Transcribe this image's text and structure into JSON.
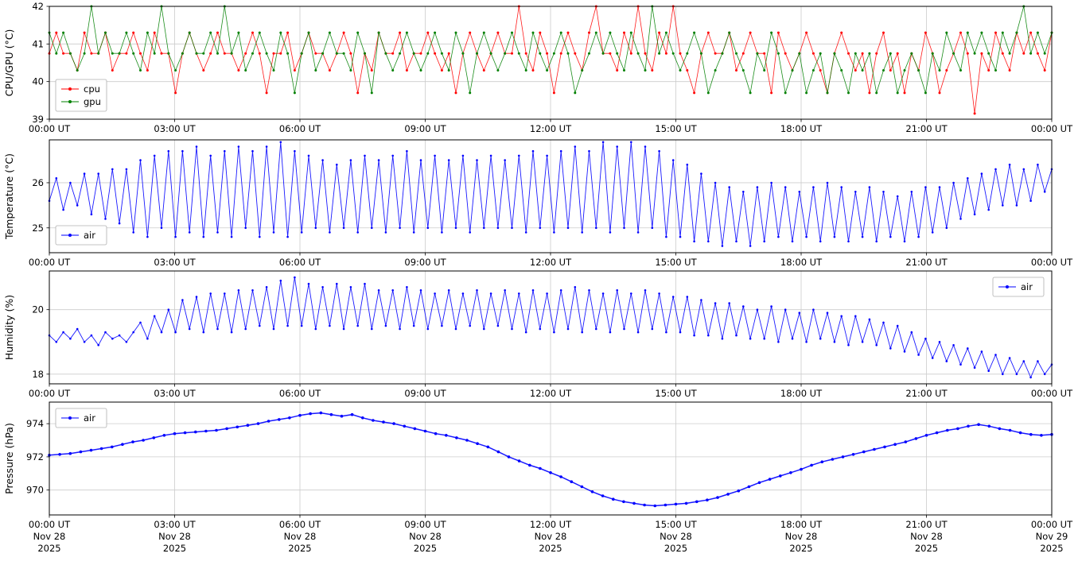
{
  "figure": {
    "background": "#ffffff",
    "grid_color": "#cccccc",
    "axis_color": "#000000"
  },
  "chart_data": {
    "type": "line",
    "title": "",
    "x_axis": {
      "unit": "hours",
      "range_hours": [
        0,
        24
      ],
      "tick_hours": [
        0,
        3,
        6,
        9,
        12,
        15,
        18,
        21,
        24
      ],
      "tick_labels": [
        "00:00 UT",
        "03:00 UT",
        "06:00 UT",
        "09:00 UT",
        "12:00 UT",
        "15:00 UT",
        "18:00 UT",
        "21:00 UT",
        "00:00 UT"
      ],
      "date_labels": [
        "Nov 28",
        "Nov 28",
        "Nov 28",
        "Nov 28",
        "Nov 28",
        "Nov 28",
        "Nov 28",
        "Nov 28",
        "Nov 29"
      ],
      "year_labels": [
        "2025",
        "2025",
        "2025",
        "2025",
        "2025",
        "2025",
        "2025",
        "2025",
        "2025"
      ]
    },
    "panels": [
      {
        "id": "cpu-gpu",
        "ylabel": "CPU/GPU (°C)",
        "ylim": [
          39,
          42
        ],
        "yticks": [
          39,
          40,
          41,
          42
        ],
        "grid": true,
        "legend_position": "lower-left",
        "series": [
          {
            "name": "cpu",
            "color": "#ff0000",
            "marker": "point",
            "values": [
              40.75,
              41.3,
              40.75,
              40.75,
              40.3,
              41.3,
              40.75,
              40.75,
              41.3,
              40.3,
              40.75,
              40.75,
              41.3,
              40.75,
              40.3,
              41.3,
              40.75,
              40.75,
              39.7,
              40.75,
              41.3,
              40.75,
              40.3,
              40.75,
              41.3,
              40.75,
              40.75,
              40.3,
              40.75,
              41.3,
              40.75,
              39.7,
              40.75,
              40.75,
              41.3,
              40.3,
              40.75,
              41.3,
              40.75,
              40.75,
              40.3,
              40.75,
              41.3,
              40.75,
              39.7,
              40.75,
              40.3,
              41.3,
              40.75,
              40.75,
              41.3,
              40.3,
              40.75,
              40.75,
              41.3,
              40.75,
              40.3,
              40.75,
              39.7,
              40.75,
              41.3,
              40.75,
              40.3,
              40.75,
              41.3,
              40.75,
              40.75,
              42.0,
              40.75,
              40.3,
              41.3,
              40.75,
              39.7,
              40.75,
              41.3,
              40.75,
              40.3,
              41.3,
              42.0,
              40.75,
              40.75,
              40.3,
              41.3,
              40.75,
              42.0,
              40.75,
              40.3,
              41.3,
              40.75,
              42.0,
              40.75,
              40.3,
              39.7,
              40.75,
              41.3,
              40.75,
              40.75,
              41.3,
              40.3,
              40.75,
              41.3,
              40.75,
              40.75,
              39.7,
              41.3,
              40.75,
              40.3,
              40.75,
              41.3,
              40.75,
              40.3,
              39.7,
              40.75,
              41.3,
              40.75,
              40.3,
              40.75,
              39.7,
              40.75,
              41.3,
              40.3,
              40.75,
              39.7,
              40.75,
              40.3,
              41.3,
              40.75,
              39.7,
              40.3,
              40.75,
              41.3,
              40.75,
              39.15,
              40.75,
              40.3,
              41.3,
              40.75,
              40.3,
              41.3,
              40.75,
              41.3,
              40.75,
              40.3,
              41.3
            ]
          },
          {
            "name": "gpu",
            "color": "#008000",
            "marker": "point",
            "values": [
              41.3,
              40.75,
              41.3,
              40.75,
              40.3,
              40.75,
              42.0,
              40.75,
              41.3,
              40.75,
              40.75,
              41.3,
              40.75,
              40.3,
              41.3,
              40.75,
              42.0,
              40.75,
              40.3,
              40.75,
              41.3,
              40.75,
              40.75,
              41.3,
              40.75,
              42.0,
              40.75,
              41.3,
              40.3,
              40.75,
              41.3,
              40.75,
              40.3,
              41.3,
              40.75,
              39.7,
              40.75,
              41.3,
              40.3,
              40.75,
              41.3,
              40.75,
              40.75,
              40.3,
              41.3,
              40.75,
              39.7,
              41.3,
              40.75,
              40.3,
              40.75,
              41.3,
              40.75,
              40.3,
              40.75,
              41.3,
              40.75,
              40.3,
              41.3,
              40.75,
              39.7,
              40.75,
              41.3,
              40.75,
              40.3,
              40.75,
              41.3,
              40.75,
              40.3,
              41.3,
              40.75,
              40.3,
              40.75,
              41.3,
              40.75,
              39.7,
              40.3,
              40.75,
              41.3,
              40.75,
              41.3,
              40.75,
              40.3,
              41.3,
              40.75,
              40.3,
              42.0,
              40.75,
              41.3,
              40.75,
              40.3,
              40.75,
              41.3,
              40.75,
              39.7,
              40.3,
              40.75,
              41.3,
              40.75,
              40.3,
              39.7,
              40.75,
              40.3,
              41.3,
              40.75,
              39.7,
              40.3,
              40.75,
              39.7,
              40.3,
              40.75,
              39.7,
              40.75,
              40.3,
              39.7,
              40.75,
              40.3,
              40.75,
              39.7,
              40.3,
              40.75,
              39.7,
              40.3,
              40.75,
              40.3,
              39.7,
              40.75,
              40.3,
              41.3,
              40.75,
              40.3,
              41.3,
              40.75,
              41.3,
              40.75,
              40.3,
              41.3,
              40.75,
              41.3,
              42.0,
              40.75,
              41.3,
              40.75,
              41.3
            ]
          }
        ]
      },
      {
        "id": "temperature",
        "ylabel": "Temperature (°C)",
        "ylim": [
          24.45,
          26.95
        ],
        "yticks": [
          25,
          26
        ],
        "grid": true,
        "legend_position": "lower-left",
        "series": [
          {
            "name": "air",
            "color": "#0000ff",
            "marker": "point",
            "values": [
              25.6,
              26.1,
              25.4,
              26.0,
              25.5,
              26.2,
              25.3,
              26.2,
              25.2,
              26.3,
              25.1,
              26.3,
              24.9,
              26.5,
              24.8,
              26.6,
              25.0,
              26.7,
              24.8,
              26.7,
              24.9,
              26.8,
              24.8,
              26.6,
              24.9,
              26.7,
              24.8,
              26.8,
              25.0,
              26.7,
              24.8,
              26.8,
              24.9,
              26.9,
              24.8,
              26.7,
              24.9,
              26.6,
              25.0,
              26.5,
              24.9,
              26.4,
              25.0,
              26.5,
              24.9,
              26.6,
              25.0,
              26.5,
              24.9,
              26.6,
              25.0,
              26.7,
              24.9,
              26.5,
              25.0,
              26.6,
              24.9,
              26.5,
              25.0,
              26.6,
              24.9,
              26.5,
              25.0,
              26.6,
              25.0,
              26.5,
              25.0,
              26.6,
              24.9,
              26.7,
              25.0,
              26.6,
              24.9,
              26.7,
              25.0,
              26.8,
              24.9,
              26.7,
              25.0,
              26.9,
              24.9,
              26.8,
              25.0,
              26.9,
              24.9,
              26.8,
              25.0,
              26.7,
              24.8,
              26.5,
              24.8,
              26.4,
              24.7,
              26.2,
              24.7,
              26.0,
              24.6,
              25.9,
              24.7,
              25.8,
              24.6,
              25.9,
              24.7,
              26.0,
              24.8,
              25.9,
              24.7,
              25.8,
              24.8,
              25.9,
              24.7,
              26.0,
              24.8,
              25.9,
              24.7,
              25.8,
              24.8,
              25.9,
              24.7,
              25.8,
              24.8,
              25.7,
              24.7,
              25.8,
              24.8,
              25.9,
              24.9,
              25.9,
              25.0,
              26.0,
              25.2,
              26.1,
              25.3,
              26.2,
              25.4,
              26.3,
              25.5,
              26.4,
              25.5,
              26.3,
              25.6,
              26.4,
              25.8,
              26.3
            ]
          }
        ]
      },
      {
        "id": "humidity",
        "ylabel": "Humidity (%)",
        "ylim": [
          17.7,
          21.2
        ],
        "yticks": [
          18,
          20
        ],
        "grid": true,
        "legend_position": "upper-right",
        "series": [
          {
            "name": "air",
            "color": "#0000ff",
            "marker": "point",
            "values": [
              19.2,
              19.0,
              19.3,
              19.1,
              19.4,
              19.0,
              19.2,
              18.9,
              19.3,
              19.1,
              19.2,
              19.0,
              19.3,
              19.6,
              19.1,
              19.8,
              19.3,
              20.0,
              19.3,
              20.3,
              19.4,
              20.4,
              19.3,
              20.5,
              19.4,
              20.5,
              19.3,
              20.6,
              19.4,
              20.6,
              19.5,
              20.7,
              19.4,
              20.9,
              19.5,
              21.0,
              19.5,
              20.8,
              19.4,
              20.7,
              19.5,
              20.8,
              19.4,
              20.7,
              19.5,
              20.8,
              19.4,
              20.6,
              19.5,
              20.6,
              19.4,
              20.7,
              19.5,
              20.6,
              19.4,
              20.5,
              19.5,
              20.6,
              19.4,
              20.5,
              19.5,
              20.6,
              19.4,
              20.5,
              19.5,
              20.6,
              19.4,
              20.5,
              19.3,
              20.6,
              19.4,
              20.5,
              19.3,
              20.6,
              19.4,
              20.7,
              19.3,
              20.6,
              19.4,
              20.5,
              19.3,
              20.6,
              19.4,
              20.5,
              19.3,
              20.6,
              19.4,
              20.5,
              19.3,
              20.4,
              19.3,
              20.4,
              19.2,
              20.3,
              19.2,
              20.2,
              19.1,
              20.2,
              19.2,
              20.1,
              19.1,
              20.0,
              19.1,
              20.1,
              19.0,
              20.0,
              19.1,
              19.9,
              19.0,
              20.0,
              19.1,
              19.9,
              19.0,
              19.8,
              18.9,
              19.8,
              19.0,
              19.7,
              18.9,
              19.6,
              18.8,
              19.5,
              18.7,
              19.3,
              18.6,
              19.1,
              18.5,
              19.0,
              18.4,
              18.9,
              18.3,
              18.8,
              18.2,
              18.7,
              18.1,
              18.6,
              18.0,
              18.5,
              18.0,
              18.4,
              17.9,
              18.4,
              18.0,
              18.3
            ]
          }
        ]
      },
      {
        "id": "pressure",
        "ylabel": "Pressure (hPa)",
        "ylim": [
          968.5,
          975.3
        ],
        "yticks": [
          970,
          972,
          974
        ],
        "grid": true,
        "legend_position": "upper-left",
        "series": [
          {
            "name": "air",
            "color": "#0000ff",
            "marker": "point",
            "values": [
              972.1,
              972.15,
              972.2,
              972.3,
              972.4,
              972.5,
              972.6,
              972.75,
              972.9,
              973.0,
              973.15,
              973.3,
              973.4,
              973.45,
              973.5,
              973.55,
              973.6,
              973.7,
              973.8,
              973.9,
              974.0,
              974.15,
              974.25,
              974.35,
              974.5,
              974.6,
              974.65,
              974.55,
              974.45,
              974.55,
              974.35,
              974.2,
              974.1,
              974.0,
              973.85,
              973.7,
              973.55,
              973.4,
              973.3,
              973.15,
              973.0,
              972.8,
              972.6,
              972.3,
              972.0,
              971.75,
              971.5,
              971.3,
              971.05,
              970.8,
              970.5,
              970.2,
              969.9,
              969.65,
              969.45,
              969.3,
              969.2,
              969.1,
              969.05,
              969.1,
              969.15,
              969.2,
              969.3,
              969.4,
              969.55,
              969.75,
              969.95,
              970.2,
              970.45,
              970.65,
              970.85,
              971.05,
              971.25,
              971.5,
              971.7,
              971.85,
              972.0,
              972.15,
              972.3,
              972.45,
              972.6,
              972.75,
              972.9,
              973.1,
              973.3,
              973.45,
              973.6,
              973.7,
              973.85,
              973.95,
              973.85,
              973.7,
              973.6,
              973.45,
              973.35,
              973.3,
              973.35
            ]
          }
        ]
      }
    ]
  }
}
